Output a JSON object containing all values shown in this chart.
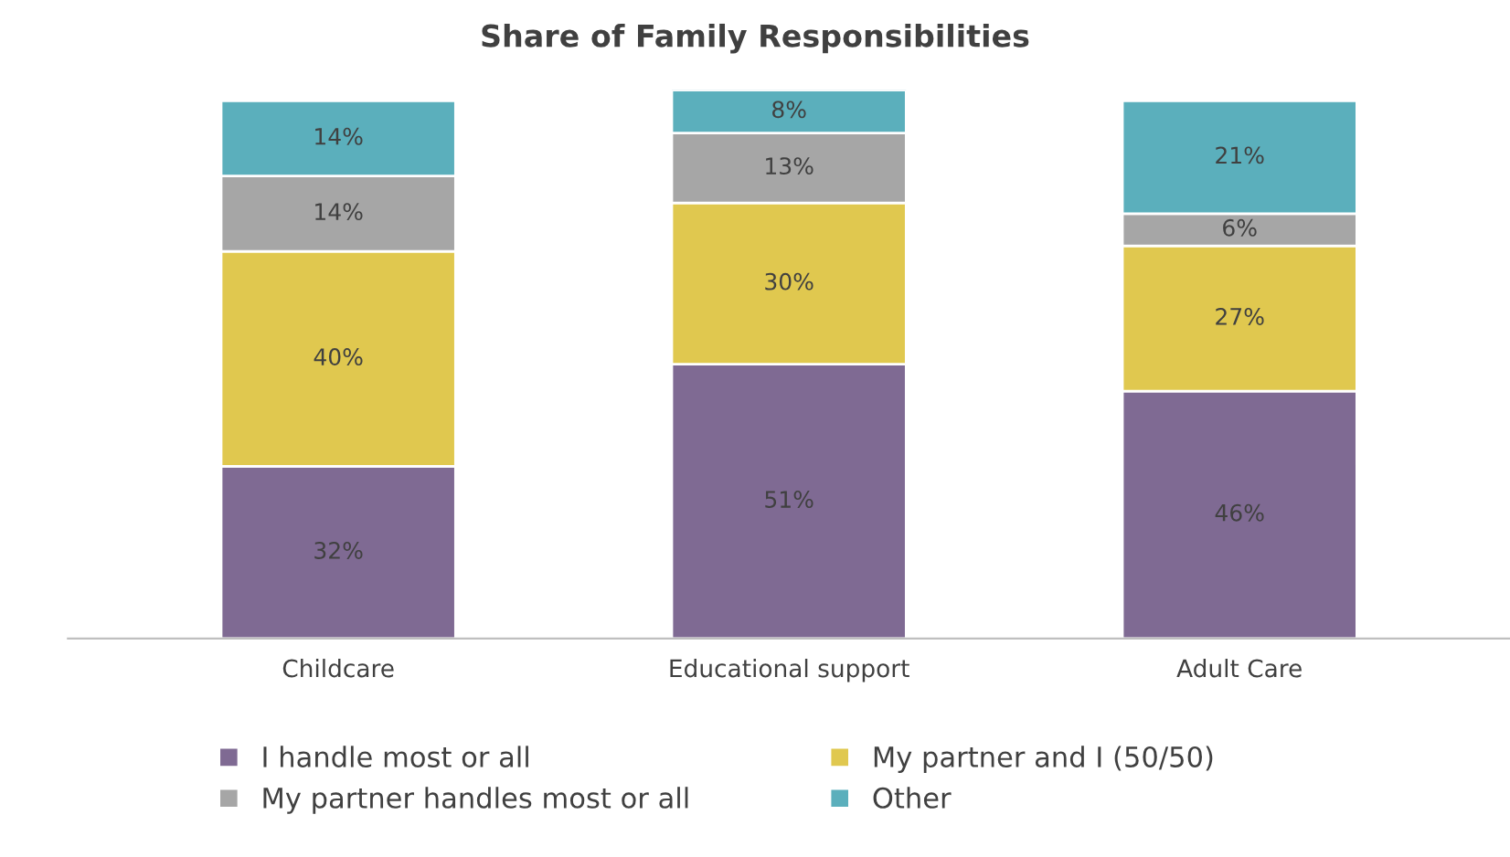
{
  "chart_data": {
    "type": "bar",
    "title": "Share of Family Responsibilities",
    "categories": [
      "Childcare",
      "Educational support",
      "Adult Care"
    ],
    "stacked": true,
    "legend": "bottom",
    "grid": false,
    "series": [
      {
        "name": "I handle most or all",
        "color": "#7f6a93",
        "values": [
          32,
          51,
          46
        ],
        "value_labels": [
          "32%",
          "51%",
          "46%"
        ]
      },
      {
        "name": "My partner and I (50/50)",
        "color": "#e0c84f",
        "values": [
          40,
          30,
          27
        ],
        "value_labels": [
          "40%",
          "30%",
          "27%"
        ]
      },
      {
        "name": "My partner handles most or all",
        "color": "#a6a6a6",
        "values": [
          14,
          13,
          6
        ],
        "value_labels": [
          "14%",
          "13%",
          "6%"
        ]
      },
      {
        "name": "Other",
        "color": "#5bafbc",
        "values": [
          14,
          8,
          21
        ],
        "value_labels": [
          "14%",
          "8%",
          "21%"
        ]
      }
    ]
  }
}
